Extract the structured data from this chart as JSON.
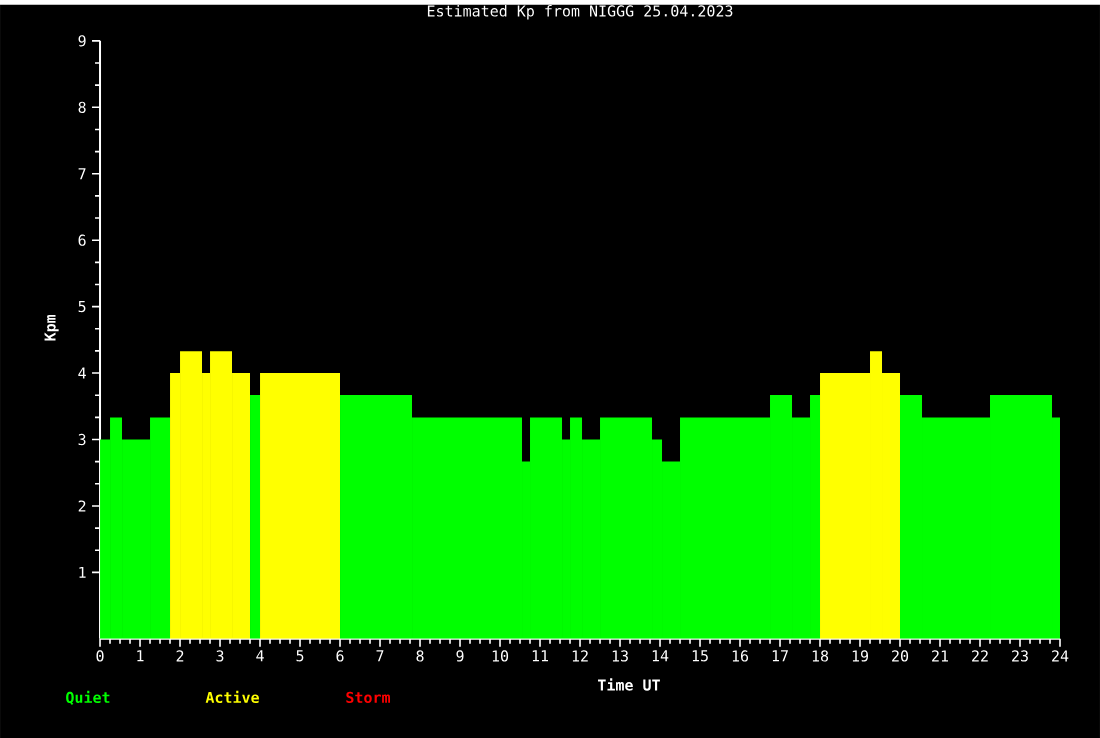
{
  "chart_data": {
    "type": "histogram",
    "title": "Estimated Kp from NIGGG 25.04.2023",
    "xlabel": "Time UT",
    "ylabel": "Kpm",
    "bins": [
      0,
      0.25,
      0.55,
      1.25,
      1.75,
      2.0,
      2.55,
      2.75,
      3.3,
      3.75,
      4.0,
      6.0,
      7.8,
      10.55,
      10.75,
      11.55,
      11.75,
      12.05,
      12.5,
      13.8,
      14.05,
      14.5,
      16.75,
      17.3,
      17.75,
      18.0,
      19.25,
      19.55,
      20.0,
      20.55,
      22.25,
      23.8,
      24
    ],
    "series": [
      {
        "name": "Quiet",
        "color": "#00ff00",
        "values": [
          3,
          3.33,
          3,
          3.33,
          null,
          null,
          null,
          null,
          null,
          3.67,
          null,
          3.67,
          3.33,
          2.67,
          3.33,
          3,
          3.33,
          3,
          3.33,
          3,
          2.67,
          3.33,
          3.67,
          3.33,
          3.67,
          null,
          null,
          null,
          3.67,
          3.33,
          3.67,
          3.33
        ]
      },
      {
        "name": "Active",
        "color": "#ffff00",
        "values": [
          null,
          null,
          null,
          null,
          4,
          4.33,
          4,
          4.33,
          4,
          null,
          4,
          null,
          null,
          null,
          null,
          null,
          null,
          null,
          null,
          null,
          null,
          null,
          null,
          null,
          null,
          4,
          4.33,
          4,
          null,
          null,
          null,
          null
        ]
      }
    ],
    "annotations": [
      "Storm"
    ],
    "xlim": [
      0,
      24
    ],
    "xticks": [
      0,
      1,
      2,
      3,
      4,
      5,
      6,
      7,
      8,
      9,
      10,
      11,
      12,
      13,
      14,
      15,
      16,
      17,
      18,
      19,
      20,
      21,
      22,
      23,
      24
    ],
    "ylim": [
      0,
      9
    ],
    "yticks": [
      1,
      2,
      3,
      4,
      5,
      6,
      7,
      8,
      9
    ],
    "legend": "bottom left"
  }
}
